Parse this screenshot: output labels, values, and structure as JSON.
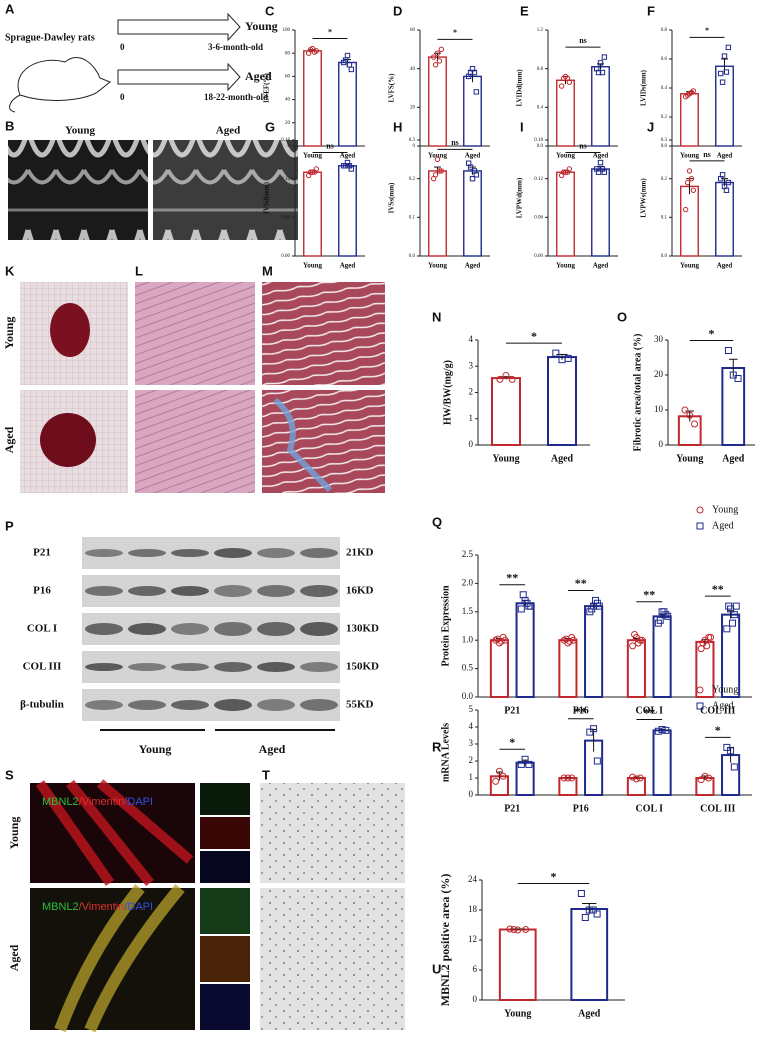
{
  "schematic": {
    "label": "A",
    "subject": "Sprague-Dawley rats",
    "groups": [
      {
        "start": "0",
        "name": "Young",
        "age": "3-6-month-old"
      },
      {
        "start": "0",
        "name": "Aged",
        "age": "18-22-month-old"
      }
    ]
  },
  "echo_images": {
    "label": "B",
    "captions": [
      "Young",
      "Aged"
    ]
  },
  "heart_images": {
    "labels": [
      "K",
      "L",
      "M"
    ],
    "rows": [
      "Young",
      "Aged"
    ]
  },
  "western_blot": {
    "label": "P",
    "rows": [
      {
        "protein": "P21",
        "size": "21KD"
      },
      {
        "protein": "P16",
        "size": "16KD"
      },
      {
        "protein": "COL I",
        "size": "130KD"
      },
      {
        "protein": "COL III",
        "size": "150KD"
      },
      {
        "protein": "β-tubulin",
        "size": "55KD"
      }
    ],
    "groups": [
      "Young",
      "Aged"
    ]
  },
  "immunofluorescence": {
    "label": "S",
    "stain": [
      "MBNL2",
      "/Vimentin",
      "/DAPI"
    ],
    "rows": [
      "Young",
      "Aged"
    ]
  },
  "ihc": {
    "label": "T"
  },
  "chart_data": [
    {
      "type": "bar",
      "label": "C",
      "ylabel": "LVEF(%)",
      "categories": [
        "Young",
        "Aged"
      ],
      "values": [
        82,
        72
      ],
      "errors": [
        1,
        2.5
      ],
      "points": [
        [
          80,
          84,
          82,
          83,
          81
        ],
        [
          72,
          78,
          66,
          74,
          70
        ]
      ],
      "colors": [
        "#c0282d",
        "#1f2a8c"
      ],
      "markers": [
        "circle",
        "square"
      ],
      "ylim": [
        0,
        100
      ],
      "yticks": [
        0,
        20,
        40,
        60,
        80,
        100
      ],
      "significance": "*"
    },
    {
      "type": "bar",
      "label": "D",
      "ylabel": "LVFS(%)",
      "categories": [
        "Young",
        "Aged"
      ],
      "values": [
        46,
        36
      ],
      "errors": [
        2,
        3
      ],
      "points": [
        [
          46,
          48,
          50,
          42,
          44
        ],
        [
          36,
          40,
          28,
          38,
          38
        ]
      ],
      "colors": [
        "#c0282d",
        "#1f2a8c"
      ],
      "markers": [
        "circle",
        "square"
      ],
      "ylim": [
        0,
        60
      ],
      "yticks": [
        0,
        20,
        40,
        60
      ],
      "significance": "*"
    },
    {
      "type": "bar",
      "label": "E",
      "ylabel": "LVIDd(mm)",
      "categories": [
        "Young",
        "Aged"
      ],
      "values": [
        0.68,
        0.82
      ],
      "errors": [
        0.04,
        0.03
      ],
      "points": [
        [
          0.62,
          0.72,
          0.66,
          0.7,
          0.7
        ],
        [
          0.8,
          0.86,
          0.92,
          0.76,
          0.76
        ]
      ],
      "colors": [
        "#c0282d",
        "#1f2a8c"
      ],
      "markers": [
        "circle",
        "square"
      ],
      "ylim": [
        0,
        1.2
      ],
      "yticks": [
        {
          "value": 0,
          "label": "0.0"
        },
        0.4,
        0.8,
        1.2
      ],
      "significance": "ns"
    },
    {
      "type": "bar",
      "label": "F",
      "ylabel": "LVIDs(mm)",
      "categories": [
        "Young",
        "Aged"
      ],
      "values": [
        0.36,
        0.55
      ],
      "errors": [
        0.015,
        0.05
      ],
      "points": [
        [
          0.34,
          0.36,
          0.38,
          0.35,
          0.37
        ],
        [
          0.5,
          0.62,
          0.68,
          0.44,
          0.51
        ]
      ],
      "colors": [
        "#c0282d",
        "#1f2a8c"
      ],
      "markers": [
        "circle",
        "square"
      ],
      "ylim": [
        0,
        0.8
      ],
      "yticks": [
        {
          "value": 0,
          "label": "0.0"
        },
        0.2,
        0.4,
        0.6,
        0.8
      ],
      "significance": "*"
    },
    {
      "type": "bar",
      "label": "G",
      "ylabel": "IVSd(mm)",
      "categories": [
        "Young",
        "Aged"
      ],
      "values": [
        0.13,
        0.14
      ],
      "errors": [
        0.003,
        0.003
      ],
      "points": [
        [
          0.125,
          0.13,
          0.135,
          0.13,
          0.13
        ],
        [
          0.14,
          0.145,
          0.135,
          0.14,
          0.14
        ]
      ],
      "colors": [
        "#c0282d",
        "#1f2a8c"
      ],
      "markers": [
        "circle",
        "square"
      ],
      "ylim": [
        0,
        0.18
      ],
      "yticks": [
        {
          "value": 0,
          "label": "0.00"
        },
        0.06,
        0.12,
        0.18
      ],
      "significance": "ns"
    },
    {
      "type": "bar",
      "label": "H",
      "ylabel": "IVSs(mm)",
      "categories": [
        "Young",
        "Aged"
      ],
      "values": [
        0.22,
        0.22
      ],
      "errors": [
        0.01,
        0.01
      ],
      "points": [
        [
          0.2,
          0.25,
          0.22,
          0.21,
          0.22
        ],
        [
          0.24,
          0.2,
          0.21,
          0.23,
          0.22
        ]
      ],
      "colors": [
        "#c0282d",
        "#1f2a8c"
      ],
      "markers": [
        "circle",
        "square"
      ],
      "ylim": [
        0,
        0.3
      ],
      "yticks": [
        {
          "value": 0,
          "label": "0.0"
        },
        0.1,
        0.2,
        0.3
      ],
      "significance": "ns"
    },
    {
      "type": "bar",
      "label": "I",
      "ylabel": "LVPWd(mm)",
      "categories": [
        "Young",
        "Aged"
      ],
      "values": [
        0.13,
        0.135
      ],
      "errors": [
        0.003,
        0.004
      ],
      "points": [
        [
          0.125,
          0.13,
          0.135,
          0.13,
          0.13
        ],
        [
          0.135,
          0.145,
          0.13,
          0.13,
          0.135
        ]
      ],
      "colors": [
        "#c0282d",
        "#1f2a8c"
      ],
      "markers": [
        "circle",
        "square"
      ],
      "ylim": [
        0,
        0.18
      ],
      "yticks": [
        {
          "value": 0,
          "label": "0.00"
        },
        0.06,
        0.12,
        0.18
      ],
      "significance": "ns"
    },
    {
      "type": "bar",
      "label": "J",
      "ylabel": "LVPWs(mm)",
      "categories": [
        "Young",
        "Aged"
      ],
      "values": [
        0.18,
        0.19
      ],
      "errors": [
        0.02,
        0.01
      ],
      "points": [
        [
          0.12,
          0.22,
          0.17,
          0.19,
          0.2
        ],
        [
          0.2,
          0.18,
          0.19,
          0.21,
          0.17
        ]
      ],
      "colors": [
        "#c0282d",
        "#1f2a8c"
      ],
      "markers": [
        "circle",
        "square"
      ],
      "ylim": [
        0,
        0.3
      ],
      "yticks": [
        {
          "value": 0,
          "label": "0.0"
        },
        0.1,
        0.2,
        0.3
      ],
      "significance": "ns"
    },
    {
      "type": "bar",
      "label": "N",
      "ylabel": "HW/BW(mg/g)",
      "categories": [
        "Young",
        "Aged"
      ],
      "values": [
        2.55,
        3.35
      ],
      "errors": [
        0.05,
        0.1
      ],
      "points": [
        [
          2.5,
          2.65,
          2.5
        ],
        [
          3.5,
          3.25,
          3.3
        ]
      ],
      "colors": [
        "#c0282d",
        "#1f2a8c"
      ],
      "markers": [
        "circle",
        "square"
      ],
      "ylim": [
        0,
        4
      ],
      "yticks": [
        0,
        1,
        2,
        3,
        4
      ],
      "significance": "*"
    },
    {
      "type": "bar",
      "label": "O",
      "ylabel": "Fibrotic area/total area (%)",
      "categories": [
        "Young",
        "Aged"
      ],
      "values": [
        8.2,
        22
      ],
      "errors": [
        1.5,
        2.5
      ],
      "points": [
        [
          10,
          8.5,
          6
        ],
        [
          27,
          20,
          19
        ]
      ],
      "colors": [
        "#c0282d",
        "#1f2a8c"
      ],
      "markers": [
        "circle",
        "square"
      ],
      "ylim": [
        0,
        30
      ],
      "yticks": [
        0,
        10,
        20,
        30
      ],
      "significance": "*"
    },
    {
      "type": "grouped_bar",
      "label": "Q",
      "ylabel": "Protein Expression",
      "categories": [
        "P21",
        "P16",
        "COL I",
        "COL III"
      ],
      "series": [
        {
          "name": "Young",
          "color": "#c0282d",
          "marker": "circle",
          "values": [
            1,
            1,
            1,
            0.97
          ],
          "errors": [
            0.03,
            0.03,
            0.03,
            0.04
          ],
          "points": [
            [
              1,
              0.95,
              1.05,
              1.02,
              0.98,
              1
            ],
            [
              1,
              0.95,
              1.05,
              1.02,
              0.98,
              1
            ],
            [
              0.9,
              1.05,
              1,
              1.1,
              0.95,
              1
            ],
            [
              0.85,
              1,
              1.05,
              0.95,
              0.9,
              1.05
            ]
          ]
        },
        {
          "name": "Aged",
          "color": "#1f2a8c",
          "marker": "square",
          "values": [
            1.65,
            1.6,
            1.42,
            1.45
          ],
          "errors": [
            0.05,
            0.04,
            0.04,
            0.07
          ],
          "points": [
            [
              1.55,
              1.7,
              1.6,
              1.8,
              1.65,
              1.6
            ],
            [
              1.5,
              1.6,
              1.65,
              1.55,
              1.7,
              1.6
            ],
            [
              1.3,
              1.5,
              1.45,
              1.35,
              1.5,
              1.42
            ],
            [
              1.2,
              1.55,
              1.45,
              1.6,
              1.3,
              1.6
            ]
          ]
        }
      ],
      "ylim": [
        0,
        2.5
      ],
      "yticks": [
        {
          "value": 0,
          "label": "0.0"
        },
        0.5,
        {
          "value": 1,
          "label": "1.0"
        },
        1.5,
        {
          "value": 2,
          "label": "2.0"
        },
        2.5
      ],
      "significance": [
        "**",
        "**",
        "**",
        "**"
      ],
      "legend": "top-right"
    },
    {
      "type": "grouped_bar",
      "label": "R",
      "ylabel": "mRNA Levels",
      "categories": [
        "P21",
        "P16",
        "COL I",
        "COL III"
      ],
      "series": [
        {
          "name": "Young",
          "color": "#c0282d",
          "marker": "circle",
          "values": [
            1.1,
            1,
            1,
            1
          ],
          "errors": [
            0.25,
            0.02,
            0.05,
            0.12
          ],
          "points": [
            [
              0.8,
              1.4,
              1.1
            ],
            [
              1,
              1,
              1
            ],
            [
              1.05,
              0.95,
              1
            ],
            [
              0.9,
              1.1,
              1
            ]
          ]
        },
        {
          "name": "Aged",
          "color": "#1f2a8c",
          "marker": "square",
          "values": [
            1.9,
            3.2,
            3.8,
            2.35
          ],
          "errors": [
            0.15,
            0.65,
            0.05,
            0.45
          ],
          "points": [
            [
              1.8,
              2.1,
              1.8
            ],
            [
              3.7,
              3.9,
              2
            ],
            [
              3.75,
              3.85,
              3.8
            ],
            [
              2.8,
              2.6,
              1.65
            ]
          ]
        }
      ],
      "ylim": [
        0,
        5
      ],
      "yticks": [
        0,
        1,
        2,
        3,
        4,
        5
      ],
      "significance": [
        "*",
        "**",
        "**",
        "*"
      ],
      "legend": "top-right"
    },
    {
      "type": "bar",
      "label": "U",
      "ylabel": "MBNL2 positive area (%)",
      "categories": [
        "Young",
        "Aged"
      ],
      "values": [
        14.1,
        18.2
      ],
      "errors": [
        0.1,
        1.1
      ],
      "points": [
        [
          14.2,
          14,
          14.1,
          14.1
        ],
        [
          21.3,
          18,
          17.2,
          16.5,
          18
        ]
      ],
      "colors": [
        "#c0282d",
        "#1f2a8c"
      ],
      "markers": [
        "circle",
        "square"
      ],
      "ylim": [
        0,
        24
      ],
      "yticks": [
        0,
        6,
        12,
        18,
        24
      ],
      "significance": "*"
    }
  ]
}
